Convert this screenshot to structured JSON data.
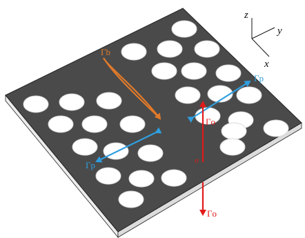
{
  "figure": {
    "colors": {
      "plate_top": "#4a4a4a",
      "plate_side": "#ededed",
      "plate_edge": "#222222",
      "hole": "#ffffff",
      "orange": "#e07a2a",
      "blue": "#2f9ee0",
      "red": "#e21a1a",
      "axes": "#111111"
    },
    "axes": {
      "x": "x",
      "y": "y",
      "z": "z"
    },
    "labels": {
      "gamma_b": "Γb",
      "gamma_p_right": "Γp",
      "gamma_p_left": "Γp",
      "gamma_o_top": "Γo",
      "gamma_o_bottom": "Γo",
      "sigma": "σ"
    }
  }
}
